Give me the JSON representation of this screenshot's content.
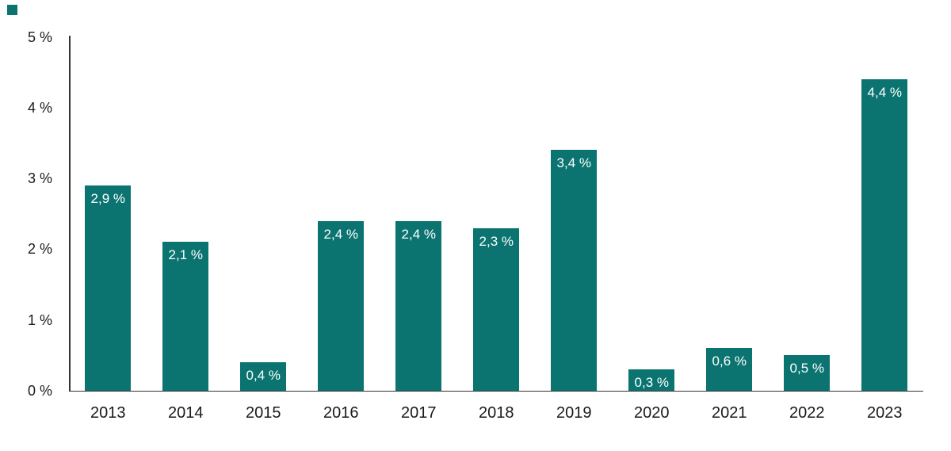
{
  "figure": {
    "marker_color": "#0b7470"
  },
  "chart_data": {
    "type": "bar",
    "categories": [
      "2013",
      "2014",
      "2015",
      "2016",
      "2017",
      "2018",
      "2019",
      "2020",
      "2021",
      "2022",
      "2023"
    ],
    "values": [
      2.9,
      2.1,
      0.4,
      2.4,
      2.4,
      2.3,
      3.4,
      0.3,
      0.6,
      0.5,
      4.4
    ],
    "bar_labels": [
      "2,9 %",
      "2,1 %",
      "0,4 %",
      "2,4 %",
      "2,4 %",
      "2,3 %",
      "3,4 %",
      "0,3 %",
      "0,6 %",
      "0,5 %",
      "4,4 %"
    ],
    "y_ticks": [
      {
        "value": 0,
        "label": "0 %"
      },
      {
        "value": 1,
        "label": "1 %"
      },
      {
        "value": 2,
        "label": "2 %"
      },
      {
        "value": 3,
        "label": "3 %"
      },
      {
        "value": 4,
        "label": "4 %"
      },
      {
        "value": 5,
        "label": "5 %"
      }
    ],
    "ylim": [
      0,
      5
    ],
    "grid": false,
    "legend": false,
    "bar_color": "#0b7470",
    "bar_label_color": "#ffffff",
    "axis_color": "#333333",
    "tick_text_color": "#1a1a1a"
  }
}
